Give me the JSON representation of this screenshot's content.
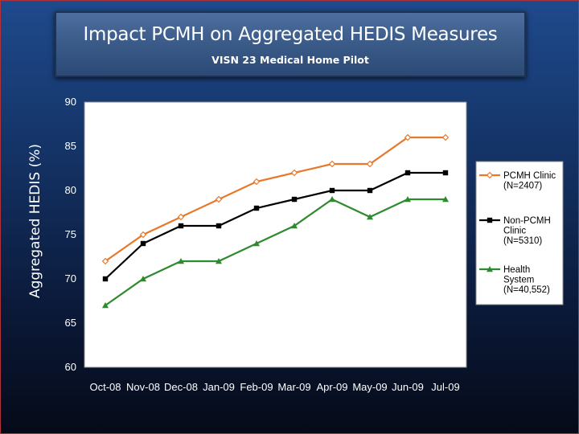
{
  "slide": {
    "title": "Impact PCMH on Aggregated HEDIS Measures",
    "subtitle": "VISN 23 Medical Home Pilot"
  },
  "chart_data": {
    "type": "line",
    "title": "Impact PCMH on Aggregated HEDIS Measures",
    "subtitle": "VISN 23 Medical Home Pilot",
    "xlabel": "",
    "ylabel": "Aggregated HEDIS (%)",
    "categories": [
      "Oct-08",
      "Nov-08",
      "Dec-08",
      "Jan-09",
      "Feb-09",
      "Mar-09",
      "Apr-09",
      "May-09",
      "Jun-09",
      "Jul-09"
    ],
    "ylim": [
      60,
      90
    ],
    "yticks": [
      60,
      65,
      70,
      75,
      80,
      85,
      90
    ],
    "grid": false,
    "legend_position": "right",
    "series": [
      {
        "name_lines": [
          "PCMH Clinic",
          "(N=2407)"
        ],
        "color": "#e8782a",
        "marker": "diamond",
        "values": [
          72,
          75,
          77,
          79,
          81,
          82,
          83,
          83,
          86,
          86
        ]
      },
      {
        "name_lines": [
          "Non-PCMH",
          "Clinic",
          "(N=5310)"
        ],
        "color": "#000000",
        "marker": "square",
        "values": [
          70,
          74,
          76,
          76,
          78,
          79,
          80,
          80,
          82,
          82
        ]
      },
      {
        "name_lines": [
          "Health",
          "System",
          "(N=40,552)"
        ],
        "color": "#2e8a2e",
        "marker": "triangle",
        "values": [
          67,
          70,
          72,
          72,
          74,
          76,
          79,
          77,
          79,
          79
        ]
      }
    ]
  }
}
